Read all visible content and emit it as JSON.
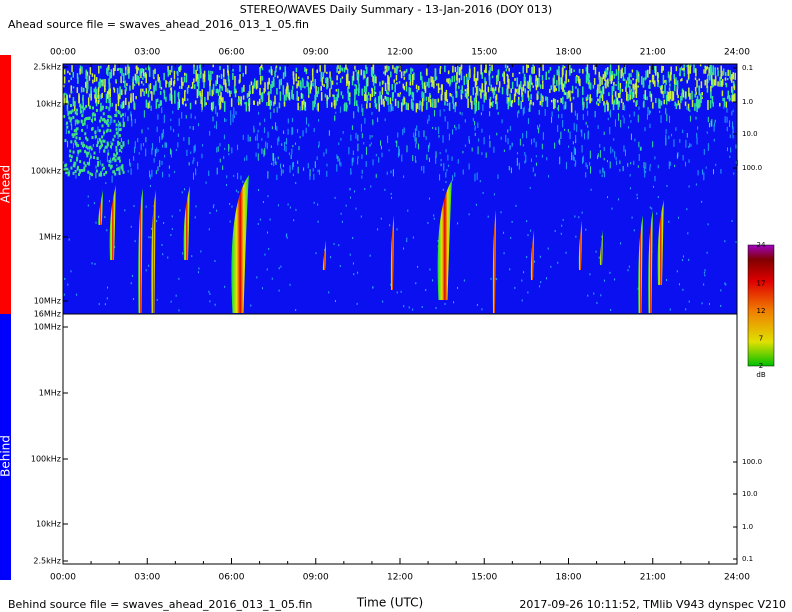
{
  "title": "STEREO/WAVES Daily Summary - 13-Jan-2016 (DOY 013)",
  "ahead_source": "Ahead source file = swaves_ahead_2016_013_1_05.fin",
  "behind_source": "Behind source file = swaves_ahead_2016_013_1_05.fin",
  "x_axis": {
    "label": "Time (UTC)",
    "ticks": [
      "00:00",
      "03:00",
      "06:00",
      "09:00",
      "12:00",
      "15:00",
      "18:00",
      "21:00",
      "24:00"
    ]
  },
  "panels": [
    {
      "name": "Ahead",
      "freq_labels": [
        "2.5kHz",
        "10kHz",
        "100kHz",
        "1MHz",
        "10MHz",
        "16MHz"
      ],
      "right_labels": [
        "0.1",
        "1.0",
        "10.0",
        "100.0"
      ]
    },
    {
      "name": "Behind",
      "freq_labels": [
        "10MHz",
        "1MHz",
        "100kHz",
        "10kHz",
        "2.5kHz"
      ],
      "right_labels": [
        "100.0",
        "10.0",
        "1.0",
        "0.1"
      ]
    }
  ],
  "colorbar": {
    "ticks": [
      24,
      17,
      12,
      7,
      2
    ],
    "unit": "dB"
  },
  "footer": "2017-09-26 10:11:52, TMlib V943 dynspec V210"
}
